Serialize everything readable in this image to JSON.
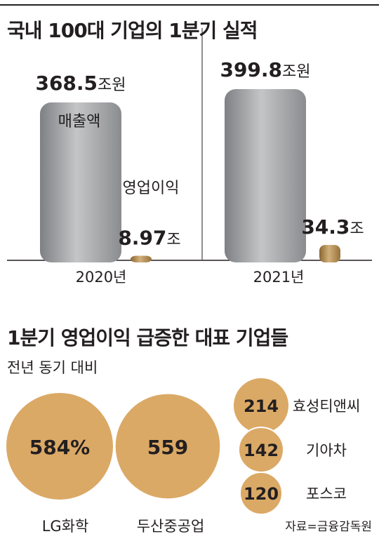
{
  "chart1": {
    "title": "국내 100대 기업의 1분기 실적",
    "chart_data": {
      "type": "bar",
      "categories": [
        "2020년",
        "2021년"
      ],
      "unit": "조원",
      "series": [
        {
          "name": "매출액",
          "values": [
            368.5,
            399.8
          ],
          "labels": [
            [
              "368.5",
              "조원"
            ],
            [
              "399.8",
              "조원"
            ]
          ],
          "color": "#9d9fa2"
        },
        {
          "name": "영업이익",
          "values": [
            8.97,
            34.3
          ],
          "labels": [
            [
              "8.97",
              "조"
            ],
            [
              "34.3",
              "조"
            ]
          ],
          "color": "#b08a4e"
        }
      ]
    }
  },
  "chart2": {
    "title": "1분기 영업이익 급증한 대표 기업들",
    "subtitle": "전년 동기 대비",
    "chart_data": {
      "type": "bubble",
      "items": [
        {
          "name": "LG화학",
          "value": 584,
          "label": "584%"
        },
        {
          "name": "두산중공업",
          "value": 559,
          "label": "559"
        },
        {
          "name": "효성티앤씨",
          "value": 214,
          "label": "214"
        },
        {
          "name": "기아차",
          "value": 142,
          "label": "142"
        },
        {
          "name": "포스코",
          "value": 120,
          "label": "120"
        }
      ],
      "color": "#dba966"
    }
  },
  "source": "자료=금융감독원"
}
